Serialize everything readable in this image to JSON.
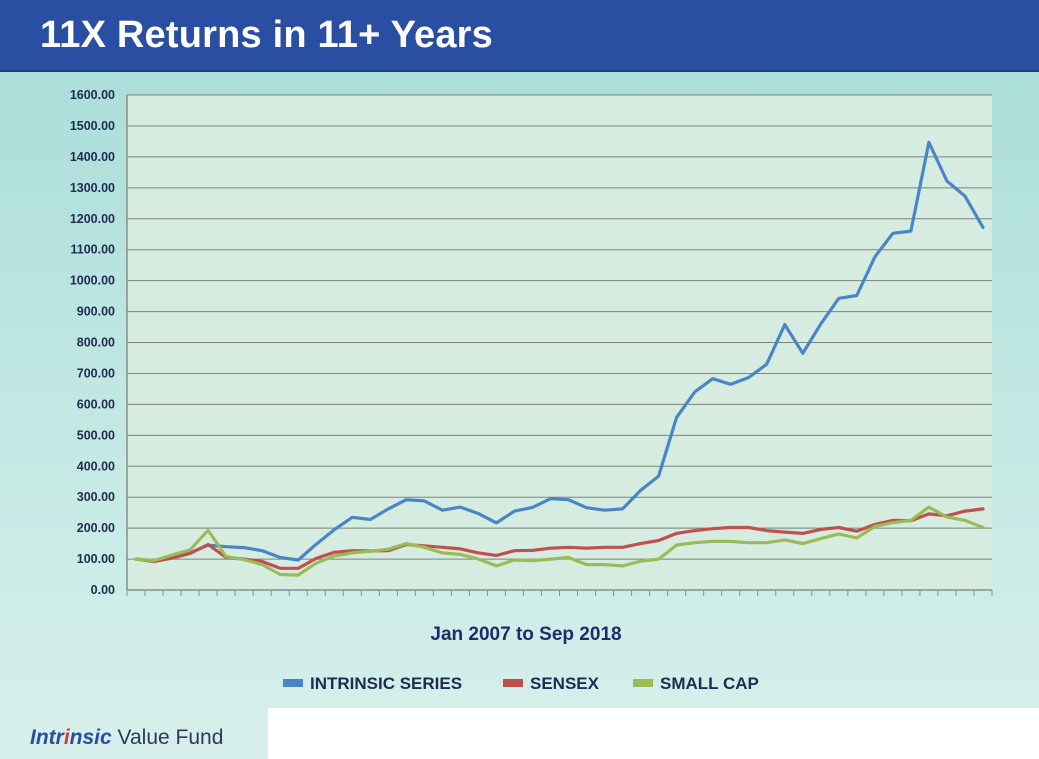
{
  "header": {
    "title": "11X Returns in 11+ Years"
  },
  "footer": {
    "brand_part1_a": "Intr",
    "brand_part1_accent": "i",
    "brand_part1_b": "nsic",
    "brand_part2": "Value Fund"
  },
  "colors": {
    "intrinsic": "#4a86c5",
    "sensex": "#c0504d",
    "smallcap": "#9bbb59",
    "header": "#2a4ea2",
    "plot_bg": "#d7ece1",
    "grid": "#7a8478"
  },
  "chart_data": {
    "type": "line",
    "title": "11X Returns in 11+ Years",
    "xlabel": "Jan 2007 to Sep 2018",
    "ylabel": "",
    "ylim": [
      0,
      1600
    ],
    "yticks": [
      "0.00",
      "100.00",
      "200.00",
      "300.00",
      "400.00",
      "500.00",
      "600.00",
      "700.00",
      "800.00",
      "900.00",
      "1000.00",
      "1100.00",
      "1200.00",
      "1300.00",
      "1400.00",
      "1500.00",
      "1600.00"
    ],
    "grid": true,
    "legend_position": "bottom",
    "series": [
      {
        "name": "INTRINSIC SERIES",
        "values": [
          100,
          95,
          108,
          120,
          145,
          140,
          137,
          127,
          105,
          97,
          148,
          195,
          235,
          228,
          262,
          292,
          288,
          258,
          268,
          247,
          217,
          255,
          267,
          295,
          292,
          266,
          258,
          262,
          322,
          368,
          558,
          640,
          683,
          665,
          687,
          730,
          858,
          765,
          860,
          943,
          952,
          1077,
          1153,
          1160,
          1447,
          1322,
          1273,
          1172
        ]
      },
      {
        "name": "SENSEX",
        "values": [
          100,
          92,
          103,
          118,
          147,
          105,
          100,
          92,
          70,
          70,
          102,
          122,
          127,
          126,
          127,
          147,
          143,
          138,
          133,
          120,
          112,
          127,
          128,
          135,
          138,
          135,
          138,
          138,
          150,
          160,
          183,
          192,
          198,
          202,
          202,
          192,
          187,
          183,
          196,
          202,
          190,
          212,
          225,
          224,
          246,
          240,
          255,
          262
        ]
      },
      {
        "name": "SMALL CAP",
        "values": [
          100,
          95,
          113,
          130,
          193,
          108,
          98,
          82,
          50,
          48,
          87,
          110,
          120,
          125,
          132,
          150,
          138,
          120,
          115,
          100,
          78,
          97,
          95,
          100,
          105,
          82,
          82,
          78,
          93,
          100,
          145,
          153,
          157,
          157,
          153,
          153,
          162,
          150,
          166,
          181,
          168,
          206,
          218,
          225,
          268,
          236,
          225,
          202
        ]
      }
    ]
  }
}
